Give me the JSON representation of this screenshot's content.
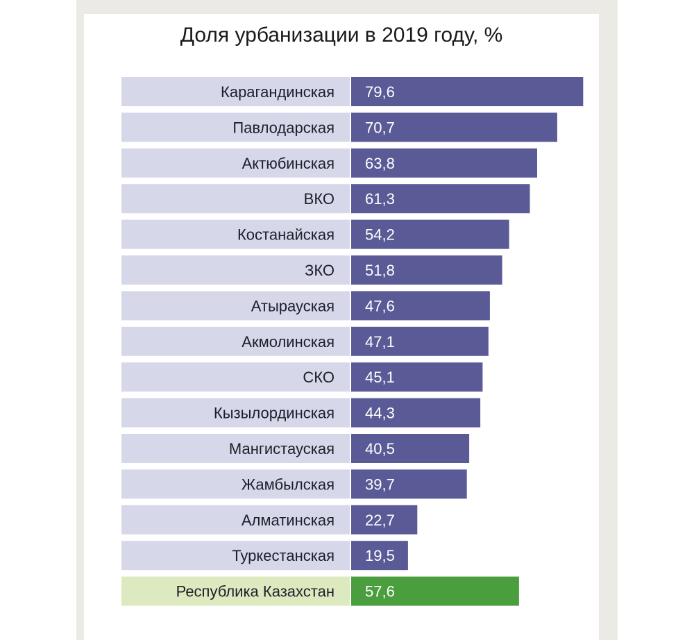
{
  "chart_data": {
    "type": "bar",
    "orientation": "horizontal",
    "title": "Доля урбанизации в 2019 году, %",
    "categories": [
      "Карагандинская",
      "Павлодарская",
      "Актюбинская",
      "ВКО",
      "Костанайская",
      "ЗКО",
      "Атырауская",
      "Акмолинская",
      "СКО",
      "Кызылординская",
      "Мангистауская",
      "Жамбылская",
      "Алматинская",
      "Туркестанская",
      "Республика Казахстан"
    ],
    "values": [
      79.6,
      70.7,
      63.8,
      61.3,
      54.2,
      51.8,
      47.6,
      47.1,
      45.1,
      44.3,
      40.5,
      39.7,
      22.7,
      19.5,
      57.6
    ],
    "value_labels": [
      "79,6",
      "70,7",
      "63,8",
      "61,3",
      "54,2",
      "51,8",
      "47,6",
      "47,1",
      "45,1",
      "44,3",
      "40,5",
      "39,7",
      "22,7",
      "19,5",
      "57,6"
    ],
    "highlight_category": "Республика Казахстан",
    "grid": false,
    "legend": "none",
    "colors": {
      "bar": "#595a96",
      "label_bg": "#d6d8ea",
      "highlight_bar": "#4a9e3e",
      "highlight_label_bg": "#dde9be"
    }
  }
}
